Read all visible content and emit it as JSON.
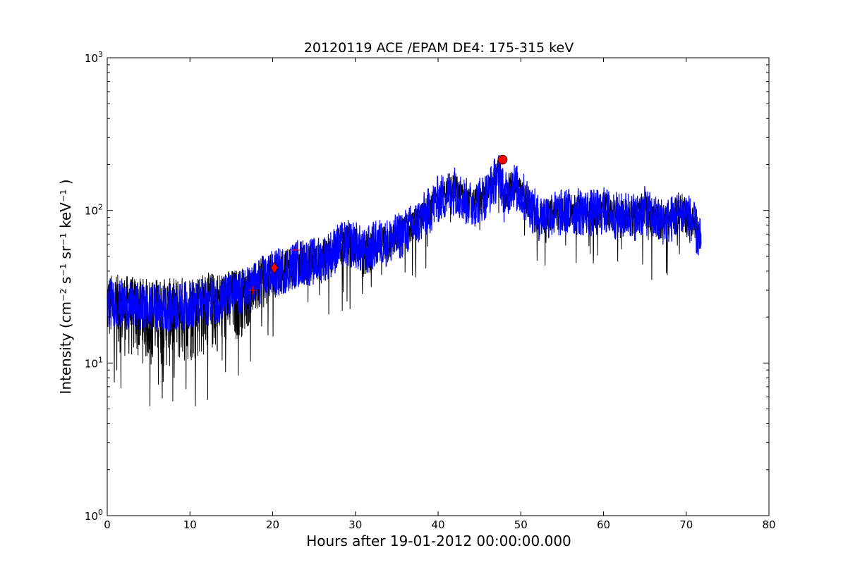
{
  "chart_data": {
    "type": "line",
    "title": "20120119 ACE /EPAM DE4: 175-315 keV",
    "xlabel": "Hours after 19-01-2012 00:00:00.000",
    "ylabel": "Intensity (cm⁻² s⁻¹ sr⁻¹ keV⁻¹ )",
    "xlim": [
      0,
      80
    ],
    "ylim": [
      1,
      1000
    ],
    "yscale": "log",
    "xticks": [
      0,
      10,
      20,
      30,
      40,
      50,
      60,
      70,
      80
    ],
    "xtick_labels": [
      "0",
      "10",
      "20",
      "30",
      "40",
      "50",
      "60",
      "70",
      "80"
    ],
    "yticks": [
      1,
      10,
      100,
      1000
    ],
    "ytick_labels": [
      {
        "base": "10",
        "exp": "0"
      },
      {
        "base": "10",
        "exp": "1"
      },
      {
        "base": "10",
        "exp": "2"
      },
      {
        "base": "10",
        "exp": "3"
      }
    ],
    "grid": false,
    "series": [
      {
        "role": "raw-intensity",
        "color": "#000000",
        "x": [
          0,
          2,
          4,
          6,
          8,
          10,
          12,
          14,
          16,
          17,
          18,
          19,
          20,
          21,
          22,
          23,
          24,
          25,
          26,
          27,
          28,
          29,
          30,
          31,
          32,
          33,
          34,
          35,
          36,
          37,
          38,
          39,
          40,
          41,
          42,
          43,
          44,
          45,
          46,
          47,
          47.5,
          48,
          49,
          50,
          51,
          52,
          53,
          54,
          55,
          56,
          57,
          58,
          59,
          60,
          61,
          62,
          63,
          64,
          65,
          66,
          67,
          68,
          69,
          70,
          71,
          71.8
        ],
        "y": [
          25,
          24,
          23,
          23,
          23,
          24,
          25,
          27,
          28,
          30,
          33,
          36,
          38,
          40,
          42,
          45,
          46,
          46,
          48,
          52,
          58,
          60,
          60,
          52,
          58,
          62,
          62,
          66,
          72,
          78,
          88,
          100,
          118,
          125,
          138,
          118,
          108,
          118,
          128,
          160,
          170,
          118,
          150,
          128,
          112,
          90,
          93,
          94,
          96,
          98,
          98,
          97,
          95,
          100,
          95,
          90,
          95,
          90,
          100,
          88,
          85,
          86,
          95,
          95,
          78,
          60
        ],
        "y_low": [
          13,
          11,
          10,
          9,
          9,
          10,
          11,
          12,
          14,
          17,
          20,
          23,
          26,
          28,
          30,
          32,
          34,
          34,
          36,
          38,
          42,
          43,
          43,
          35,
          40,
          44,
          45,
          50,
          56,
          64,
          72,
          82,
          100,
          104,
          115,
          96,
          88,
          96,
          108,
          132,
          138,
          92,
          120,
          100,
          86,
          72,
          72,
          74,
          75,
          77,
          77,
          75,
          72,
          78,
          72,
          66,
          70,
          66,
          76,
          66,
          63,
          64,
          70,
          70,
          58,
          44
        ],
        "y_high": [
          38,
          38,
          36,
          36,
          36,
          38,
          39,
          40,
          42,
          43,
          46,
          50,
          52,
          54,
          56,
          60,
          60,
          60,
          64,
          70,
          78,
          80,
          80,
          68,
          76,
          82,
          84,
          88,
          94,
          102,
          112,
          128,
          150,
          160,
          180,
          148,
          138,
          150,
          162,
          200,
          210,
          146,
          188,
          160,
          140,
          114,
          118,
          120,
          122,
          126,
          126,
          124,
          120,
          140,
          122,
          116,
          122,
          116,
          136,
          114,
          110,
          112,
          130,
          128,
          104,
          76
        ]
      },
      {
        "role": "smoothed-intensity",
        "color": "#0000ff",
        "x": [
          0,
          2,
          4,
          6,
          8,
          10,
          12,
          14,
          16,
          17,
          18,
          19,
          20,
          21,
          22,
          23,
          24,
          25,
          26,
          27,
          28,
          29,
          30,
          31,
          32,
          33,
          34,
          35,
          36,
          37,
          38,
          39,
          40,
          41,
          42,
          43,
          44,
          45,
          46,
          47,
          47.5,
          48,
          49,
          50,
          51,
          52,
          53,
          54,
          55,
          56,
          57,
          58,
          59,
          60,
          61,
          62,
          63,
          64,
          65,
          66,
          67,
          68,
          69,
          70,
          71,
          71.8
        ],
        "y": [
          25,
          24,
          23,
          23,
          23,
          24,
          25,
          27,
          28,
          30,
          33,
          36,
          38,
          40,
          42,
          45,
          46,
          46,
          48,
          52,
          58,
          60,
          60,
          52,
          58,
          62,
          62,
          66,
          72,
          78,
          88,
          100,
          118,
          125,
          138,
          118,
          108,
          118,
          128,
          160,
          170,
          118,
          150,
          128,
          112,
          90,
          93,
          94,
          96,
          98,
          98,
          97,
          95,
          100,
          95,
          90,
          95,
          90,
          100,
          88,
          85,
          86,
          95,
          95,
          78,
          60
        ],
        "band": 0.16
      }
    ],
    "markers": [
      {
        "name": "onset-plus-marker-1",
        "shape": "plus",
        "color": "#ff0000",
        "x": 17.6,
        "y": 30
      },
      {
        "name": "onset-plus-marker-2",
        "shape": "plus",
        "color": "#ff0000",
        "x": 22.8,
        "y": 55
      },
      {
        "name": "onset-diamond-marker",
        "shape": "diamond",
        "color": "#ff0000",
        "x": 20.2,
        "y": 42
      },
      {
        "name": "peak-circle-marker",
        "shape": "circle",
        "color": "#ff0000",
        "x": 47.8,
        "y": 215
      }
    ]
  }
}
